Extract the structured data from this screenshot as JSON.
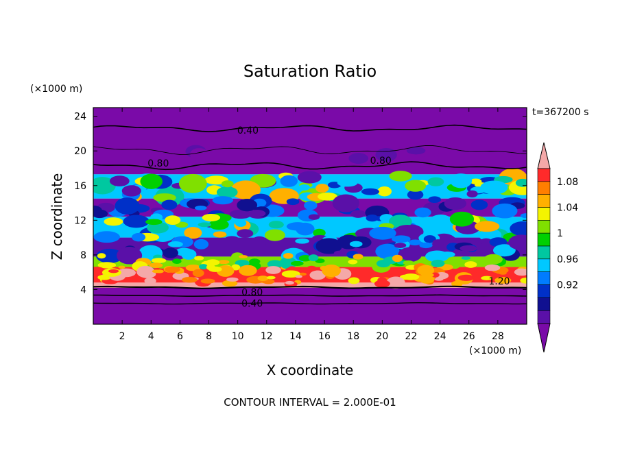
{
  "chart_data": {
    "type": "heatmap",
    "title": "Saturation Ratio",
    "xlabel": "X coordinate",
    "ylabel": "Z coordinate",
    "x_unit": "(×1000 m)",
    "y_unit": "(×1000 m)",
    "time_label": "t=367200 s",
    "footer": "CONTOUR INTERVAL = 2.000E-01",
    "xlim": [
      0,
      30
    ],
    "ylim": [
      0,
      25
    ],
    "x_ticks": [
      "2",
      "4",
      "6",
      "8",
      "10",
      "12",
      "14",
      "16",
      "18",
      "20",
      "22",
      "24",
      "26",
      "28"
    ],
    "y_ticks": [
      "4",
      "8",
      "12",
      "16",
      "20",
      "24"
    ],
    "colorbar": {
      "levels": [
        "1.08",
        "1.04",
        "1",
        "0.96",
        "0.92"
      ],
      "colors": [
        "#f4a8a8",
        "#ff2a2a",
        "#ff7e00",
        "#ffb000",
        "#f4f400",
        "#80e000",
        "#00d000",
        "#00c8a0",
        "#00c8ff",
        "#007cff",
        "#0030c8",
        "#101090",
        "#5a10a8",
        "#7a0aa8"
      ]
    },
    "contour_labels": [
      {
        "text": "0.40",
        "x": 10.7,
        "z": 22.4
      },
      {
        "text": "0.80",
        "x": 4.5,
        "z": 18.6
      },
      {
        "text": "0.80",
        "x": 19.9,
        "z": 18.9
      },
      {
        "text": "1.20",
        "x": 28.1,
        "z": 5.0
      },
      {
        "text": "0.80",
        "x": 11.0,
        "z": 3.7
      },
      {
        "text": "0.40",
        "x": 11.0,
        "z": 2.4
      }
    ],
    "bands": [
      {
        "z0": 17.3,
        "z1": 25.0,
        "color": "#7a0aa8"
      },
      {
        "z0": 14.5,
        "z1": 17.3,
        "color": "#00c8ff"
      },
      {
        "z0": 12.4,
        "z1": 14.5,
        "color": "#7a0aa8"
      },
      {
        "z0": 10.0,
        "z1": 12.4,
        "color": "#00c8ff"
      },
      {
        "z0": 7.8,
        "z1": 10.0,
        "color": "#5a10a8"
      },
      {
        "z0": 6.6,
        "z1": 7.8,
        "color": "#80e000"
      },
      {
        "z0": 4.8,
        "z1": 6.6,
        "color": "#ff2a2a"
      },
      {
        "z0": 4.2,
        "z1": 4.8,
        "color": "#f4a8a8"
      },
      {
        "z0": 0.0,
        "z1": 4.2,
        "color": "#7a0aa8"
      }
    ]
  }
}
